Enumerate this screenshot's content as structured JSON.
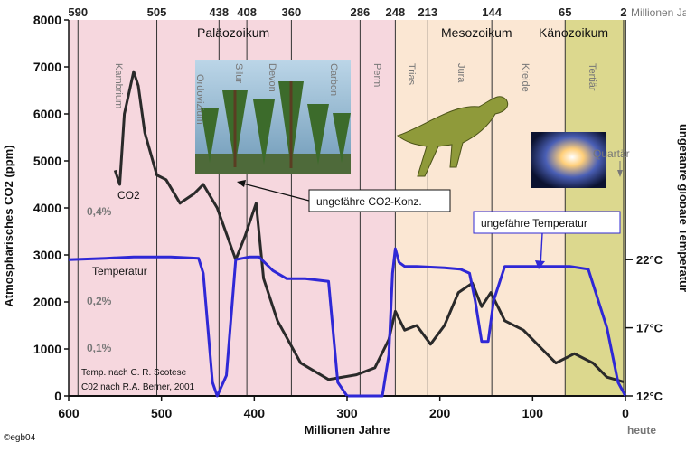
{
  "chart_data": {
    "type": "line",
    "top_axis_ticks": [
      "590",
      "505",
      "438",
      "408",
      "360",
      "286",
      "248",
      "213",
      "144",
      "65",
      "2"
    ],
    "top_axis_unit": "Millionen Jahre",
    "xlabel": "Millionen Jahre",
    "x_ticks": [
      "600",
      "500",
      "400",
      "300",
      "200",
      "100",
      "0"
    ],
    "x_end_label": "heute",
    "xlim": [
      600,
      0
    ],
    "ylabel": "Atmosphärisches CO2 (ppm)",
    "ylim": [
      0,
      8000
    ],
    "y_ticks": [
      "0",
      "1000",
      "2000",
      "3000",
      "4000",
      "5000",
      "6000",
      "7000",
      "8000"
    ],
    "y2label": "ungefähre globale Temperatur",
    "y2_ticks": [
      "12°C",
      "17°C",
      "22°C"
    ],
    "percent_labels": [
      "0,4%",
      "0,2%",
      "0,1%"
    ],
    "eras": [
      "Paläozoikum",
      "Mesozoikum",
      "Känozoikum"
    ],
    "era_colors": [
      "#f6d7de",
      "#fbe7d3",
      "#dcd88e"
    ],
    "periods": [
      "Kambrium",
      "Ordovizium",
      "Silur",
      "Devon",
      "Carbon",
      "Perm",
      "Trias",
      "Jura",
      "Kreide",
      "Tertiär",
      "Quartär"
    ],
    "series": [
      {
        "name": "CO2",
        "color": "#2a2a2a",
        "x": [
          550,
          545,
          540,
          530,
          525,
          518,
          505,
          495,
          480,
          465,
          455,
          440,
          420,
          410,
          398,
          390,
          375,
          350,
          320,
          290,
          270,
          255,
          248,
          238,
          225,
          210,
          195,
          180,
          165,
          155,
          145,
          130,
          110,
          90,
          75,
          55,
          35,
          20,
          2
        ],
        "y": [
          4800,
          4500,
          6000,
          6900,
          6600,
          5600,
          4700,
          4600,
          4100,
          4300,
          4500,
          4000,
          2900,
          3400,
          4100,
          2500,
          1600,
          700,
          350,
          450,
          600,
          1200,
          1800,
          1400,
          1500,
          1100,
          1500,
          2200,
          2400,
          1900,
          2200,
          1600,
          1400,
          1000,
          700,
          900,
          700,
          400,
          300
        ]
      },
      {
        "name": "Temperatur",
        "color": "#2f28d6",
        "x": [
          600,
          560,
          530,
          490,
          460,
          455,
          450,
          445,
          440,
          430,
          420,
          405,
          395,
          380,
          365,
          345,
          320,
          310,
          300,
          290,
          262,
          255,
          251,
          248,
          244,
          238,
          225,
          195,
          178,
          168,
          162,
          155,
          148,
          142,
          130,
          105,
          85,
          60,
          40,
          20,
          8,
          0
        ],
        "y": [
          22,
          22.1,
          22.2,
          22.2,
          22.1,
          21,
          17,
          13,
          12,
          13.5,
          22,
          22.2,
          22.2,
          21.2,
          20.6,
          20.6,
          20.4,
          13,
          12,
          12,
          12,
          15,
          21,
          22.8,
          21.8,
          21.5,
          21.5,
          21.4,
          21.3,
          21,
          19,
          16,
          16,
          19,
          21.5,
          21.5,
          21.5,
          21.5,
          21.3,
          17,
          13,
          12
        ]
      }
    ],
    "callouts": [
      "ungefähre CO2-Konz.",
      "ungefähre Temperatur"
    ],
    "series_labels": [
      "CO2",
      "Temperatur",
      "Quartär"
    ],
    "credits": [
      "Temp. nach C. R. Scotese",
      "C02 nach R.A. Berner, 2001"
    ],
    "copyright": "©egb04",
    "grid": "vertical period boundaries",
    "legend": "inline labels"
  }
}
